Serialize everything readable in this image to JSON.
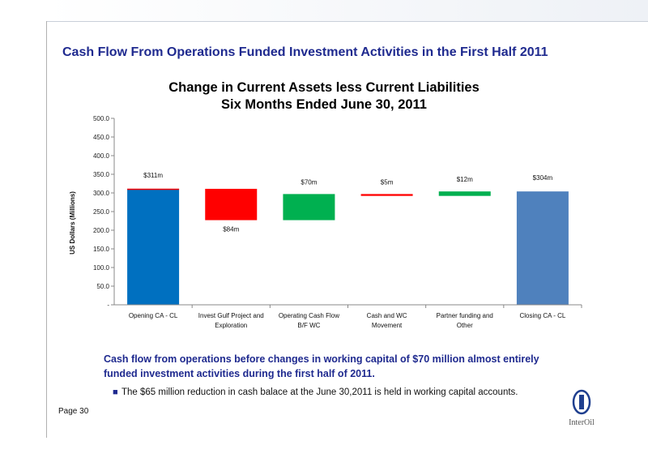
{
  "page": {
    "heading": "Cash Flow From Operations Funded Investment Activities in the First Half 2011",
    "summary": "Cash flow from operations before changes in working capital of $70 million almost entirely funded investment activities during the first half of 2011.",
    "bullet": "The $65 million reduction in cash balace at the June 30,2011 is held in working capital accounts.",
    "page_number": "Page 30",
    "logo_text": "InterOil"
  },
  "chart_data": {
    "type": "bar",
    "subtype": "waterfall",
    "title_line1": "Change in Current Assets less Current Liabilities",
    "title_line2": "Six Months Ended June 30, 2011",
    "ylabel": "US Dollars (Millions)",
    "ylim": [
      0,
      500
    ],
    "yticks": [
      {
        "value": 0,
        "label": "-"
      },
      {
        "value": 50,
        "label": "50.0"
      },
      {
        "value": 100,
        "label": "100.0"
      },
      {
        "value": 150,
        "label": "150.0"
      },
      {
        "value": 200,
        "label": "200.0"
      },
      {
        "value": 250,
        "label": "250.0"
      },
      {
        "value": 300,
        "label": "300.0"
      },
      {
        "value": 350,
        "label": "350.0"
      },
      {
        "value": 400,
        "label": "400.0"
      },
      {
        "value": 450,
        "label": "450.0"
      },
      {
        "value": 500,
        "label": "500.0"
      }
    ],
    "grid": false,
    "legend": "none",
    "steps": [
      {
        "category": [
          "Opening CA - CL"
        ],
        "base": 0,
        "value": 311,
        "label": "$311m",
        "kind": "total",
        "color": "#0070c0"
      },
      {
        "category": [
          "Invest Gulf Project and",
          "Exploration"
        ],
        "base": 227,
        "value": 84,
        "label": "$84m",
        "kind": "decrease",
        "color": "#ff0000"
      },
      {
        "category": [
          "Operating Cash Flow",
          "B/F WC"
        ],
        "base": 227,
        "value": 70,
        "label": "$70m",
        "kind": "increase",
        "color": "#00b050"
      },
      {
        "category": [
          "Cash and WC",
          "Movement"
        ],
        "base": 292,
        "value": 5,
        "label": "$5m",
        "kind": "decrease",
        "color": "#ff0000"
      },
      {
        "category": [
          "Partner funding and",
          "Other"
        ],
        "base": 292,
        "value": 12,
        "label": "$12m",
        "kind": "increase",
        "color": "#00b050"
      },
      {
        "category": [
          "Closing CA - CL"
        ],
        "base": 0,
        "value": 304,
        "label": "$304m",
        "kind": "total",
        "color": "#4f81bd"
      }
    ]
  }
}
